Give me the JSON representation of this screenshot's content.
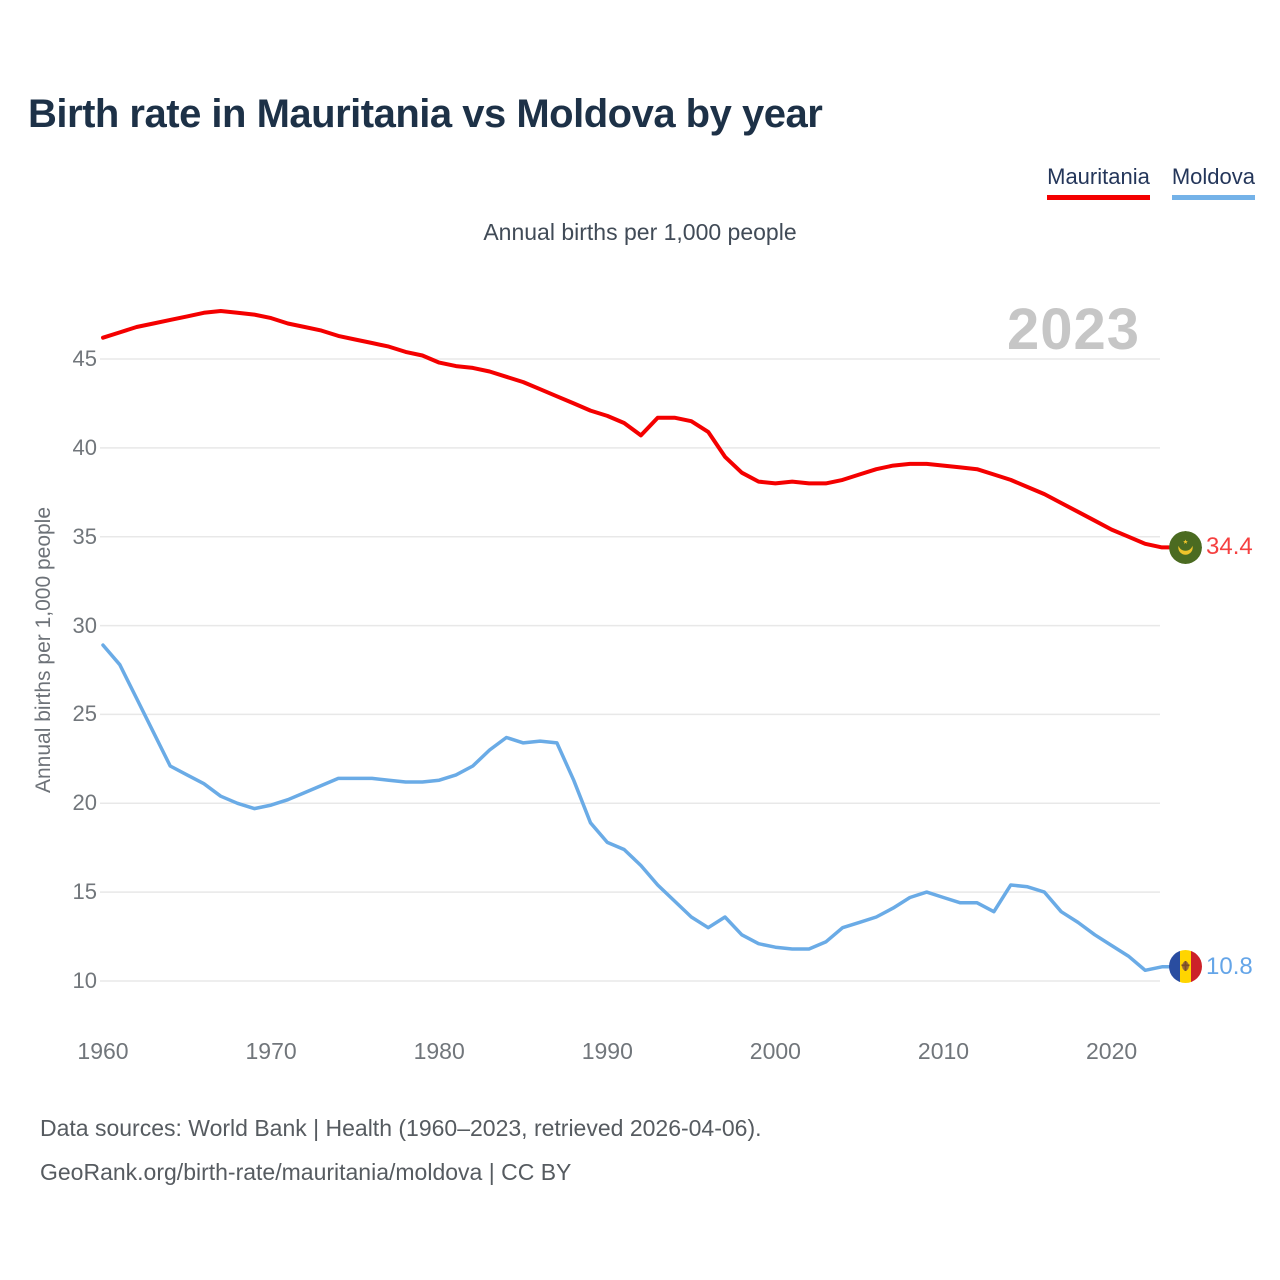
{
  "header": {
    "title": "Birth rate in Mauritania vs Moldova by year"
  },
  "legend": [
    {
      "label": "Mauritania",
      "color": "#f40000"
    },
    {
      "label": "Moldova",
      "color": "#74b2e8"
    }
  ],
  "subtitle": "Annual births per 1,000 people",
  "watermark": "2023",
  "annotations": {
    "mauritania_end_value": "34.4",
    "moldova_end_value": "10.8"
  },
  "icons": {
    "mauritania": "mauritania-flag-icon",
    "moldova": "moldova-flag-icon"
  },
  "footer": {
    "line1": "Data sources: World Bank | Health (1960–2023, retrieved 2026-04-06).",
    "line2": "GeoRank.org/birth-rate/mauritania/moldova | CC BY"
  },
  "chart_data": {
    "type": "line",
    "title": "Birth rate in Mauritania vs Moldova by year",
    "subtitle": "Annual births per 1,000 people",
    "xlabel": "",
    "ylabel": "Annual births per 1,000 people",
    "grid": true,
    "legend_position": "top-right",
    "xlim": [
      1960,
      2023
    ],
    "ylim": [
      10,
      48
    ],
    "xticks": [
      1960,
      1970,
      1980,
      1990,
      2000,
      2010,
      2020
    ],
    "yticks": [
      10,
      15,
      20,
      25,
      30,
      35,
      40,
      45
    ],
    "years": [
      1960,
      1961,
      1962,
      1963,
      1964,
      1965,
      1966,
      1967,
      1968,
      1969,
      1970,
      1971,
      1972,
      1973,
      1974,
      1975,
      1976,
      1977,
      1978,
      1979,
      1980,
      1981,
      1982,
      1983,
      1984,
      1985,
      1986,
      1987,
      1988,
      1989,
      1990,
      1991,
      1992,
      1993,
      1994,
      1995,
      1996,
      1997,
      1998,
      1999,
      2000,
      2001,
      2002,
      2003,
      2004,
      2005,
      2006,
      2007,
      2008,
      2009,
      2010,
      2011,
      2012,
      2013,
      2014,
      2015,
      2016,
      2017,
      2018,
      2019,
      2020,
      2021,
      2022,
      2023
    ],
    "series": [
      {
        "name": "Mauritania",
        "color": "#f40000",
        "end_label": "34.4",
        "values": [
          46.2,
          46.5,
          46.8,
          47.0,
          47.2,
          47.4,
          47.6,
          47.7,
          47.6,
          47.5,
          47.3,
          47.0,
          46.8,
          46.6,
          46.3,
          46.1,
          45.9,
          45.7,
          45.4,
          45.2,
          44.8,
          44.6,
          44.5,
          44.3,
          44.0,
          43.7,
          43.3,
          42.9,
          42.5,
          42.1,
          41.8,
          41.4,
          40.7,
          41.7,
          41.7,
          41.5,
          40.9,
          39.5,
          38.6,
          38.1,
          38.0,
          38.1,
          38.0,
          38.0,
          38.2,
          38.5,
          38.8,
          39.0,
          39.1,
          39.1,
          39.0,
          38.9,
          38.8,
          38.5,
          38.2,
          37.8,
          37.4,
          36.9,
          36.4,
          35.9,
          35.4,
          35.0,
          34.6,
          34.4
        ]
      },
      {
        "name": "Moldova",
        "color": "#6aabe6",
        "end_label": "10.8",
        "values": [
          28.9,
          27.8,
          25.9,
          24.0,
          22.1,
          21.6,
          21.1,
          20.4,
          20.0,
          19.7,
          19.9,
          20.2,
          20.6,
          21.0,
          21.4,
          21.4,
          21.4,
          21.3,
          21.2,
          21.2,
          21.3,
          21.6,
          22.1,
          23.0,
          23.7,
          23.4,
          23.5,
          23.4,
          21.3,
          18.9,
          17.8,
          17.4,
          16.5,
          15.4,
          14.5,
          13.6,
          13.0,
          13.6,
          12.6,
          12.1,
          11.9,
          11.8,
          11.8,
          12.2,
          13.0,
          13.3,
          13.6,
          14.1,
          14.7,
          15.0,
          14.7,
          14.4,
          14.4,
          13.9,
          15.4,
          15.3,
          15.0,
          13.9,
          13.3,
          12.6,
          12.0,
          11.4,
          10.6,
          10.8
        ]
      }
    ]
  }
}
